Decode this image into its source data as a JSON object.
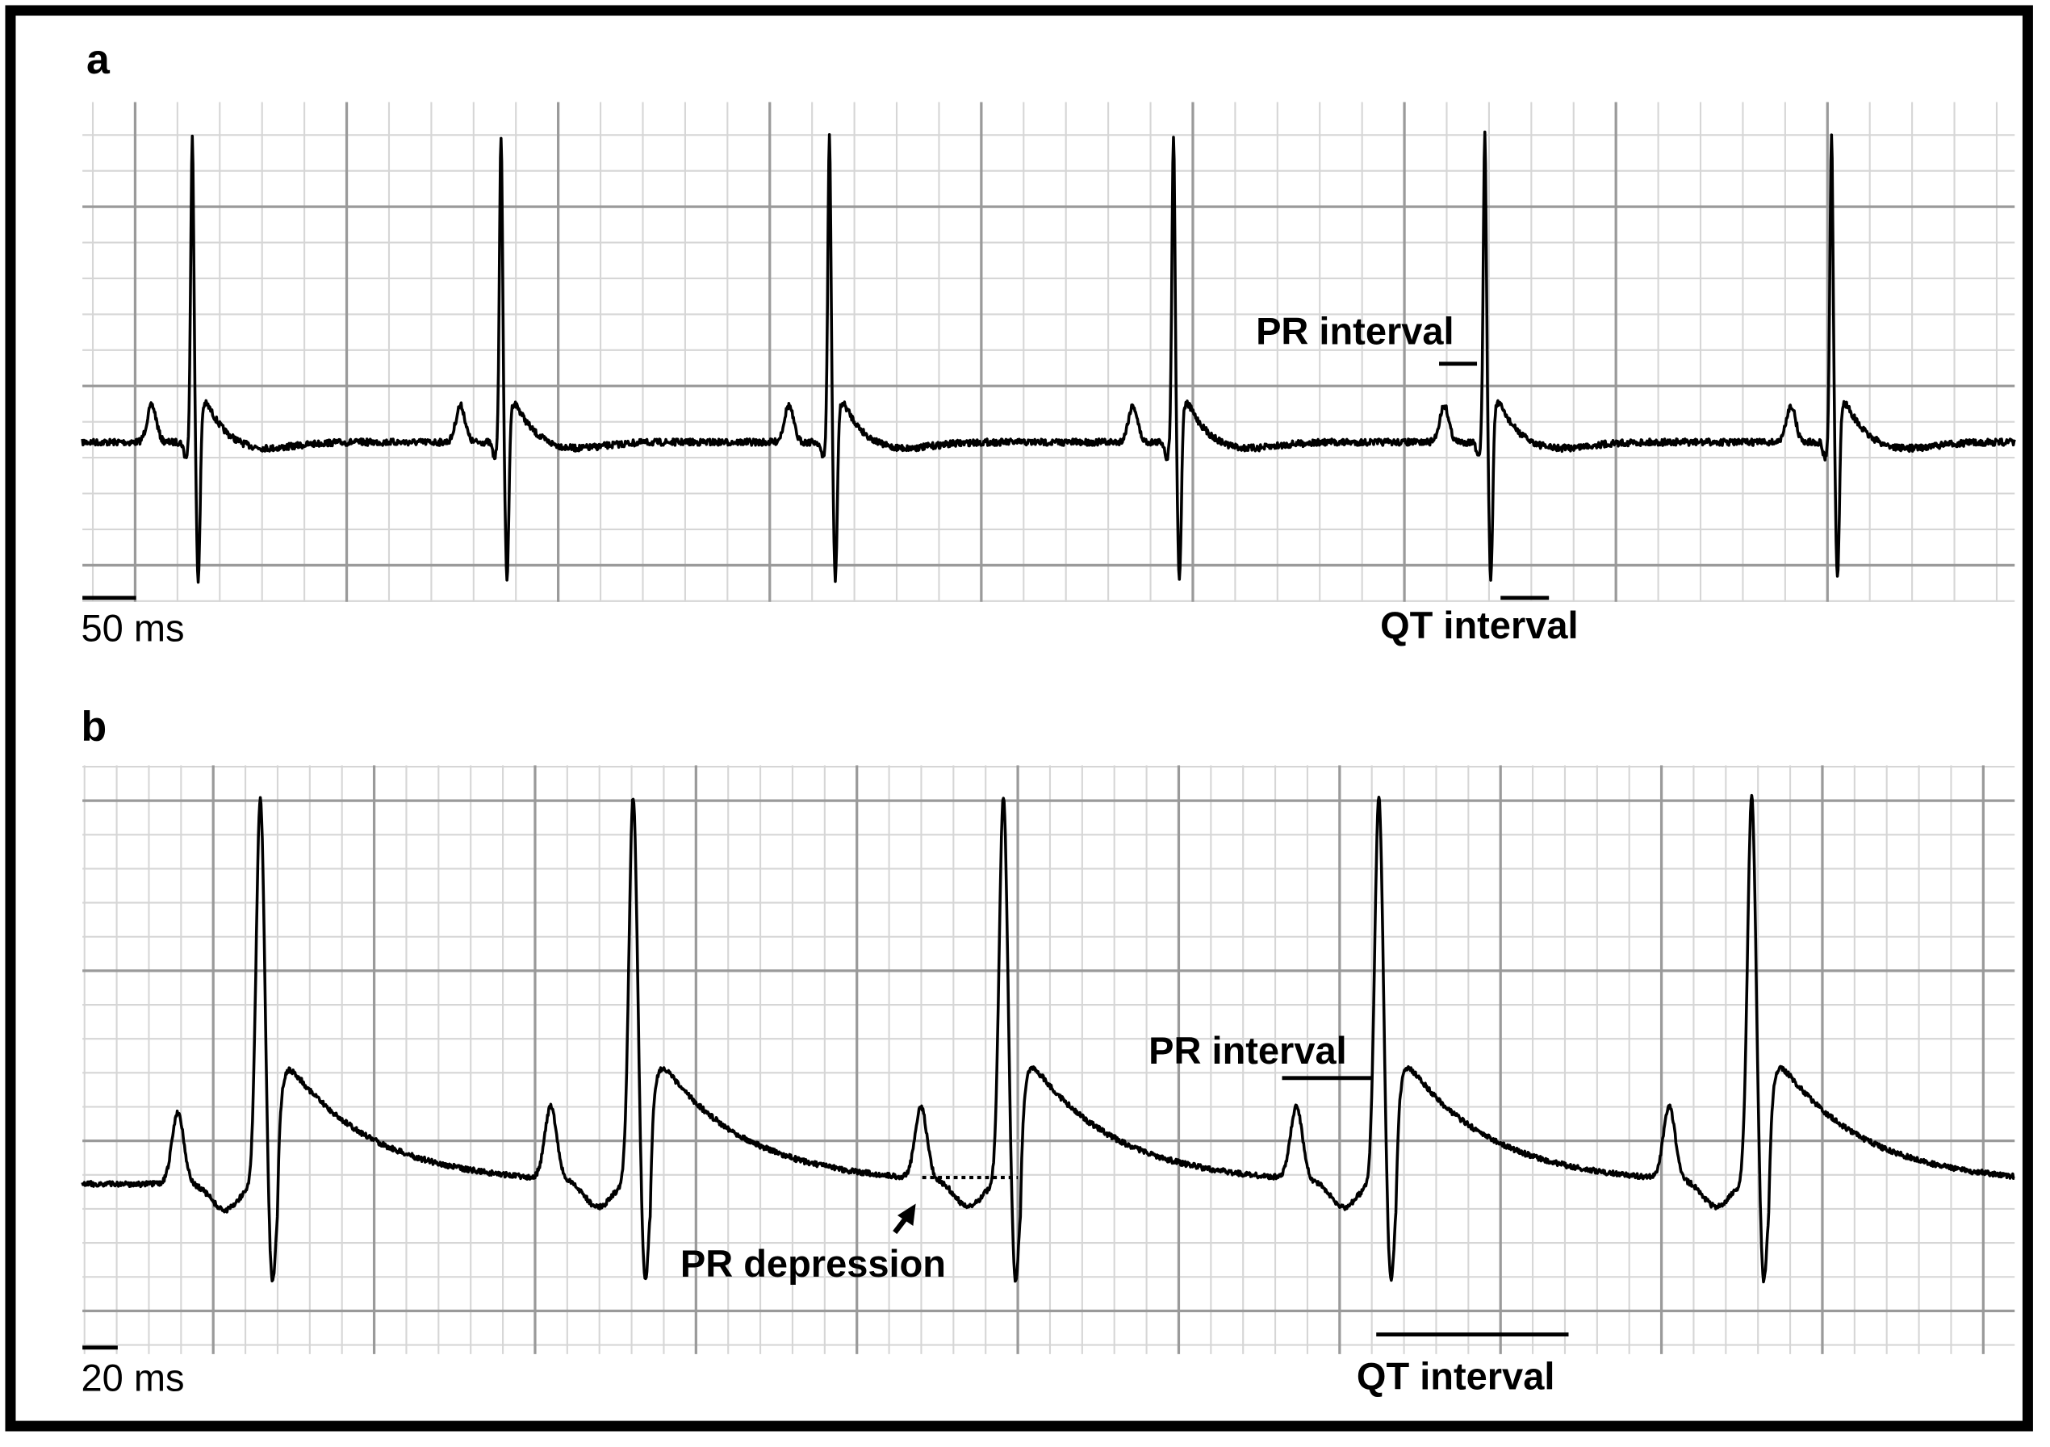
{
  "panels": [
    {
      "label": "a",
      "scale_bar": "50 ms",
      "annotations": {
        "pr": "PR interval",
        "qt": "QT interval"
      }
    },
    {
      "label": "b",
      "scale_bar": "20 ms",
      "annotations": {
        "pr": "PR interval",
        "qt": "QT interval",
        "depression": "PR depression"
      }
    }
  ]
}
